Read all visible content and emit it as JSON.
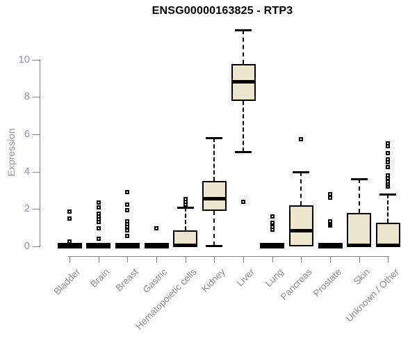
{
  "chart_data": {
    "type": "boxplot",
    "title": "ENSG00000163825 - RTP3",
    "ylabel": "Expression",
    "xlabel": "",
    "yticks": [
      0,
      2,
      4,
      6,
      8,
      10
    ],
    "ylim": [
      0,
      11.7
    ],
    "grid": false,
    "legend": "none",
    "colors": {
      "box_fill": "#ece6ce",
      "box_line": "#000000",
      "axis_line": "#808080",
      "axis_text": "#8d95a2",
      "category_text": "#8b8b8b"
    },
    "categories": [
      "Bladder",
      "Brain",
      "Breast",
      "Gastric",
      "Hematopoietic cells",
      "Kidney",
      "Liver",
      "Lung",
      "Pancreas",
      "Prostate",
      "Skin",
      "Unknown / Other"
    ],
    "series": [
      {
        "q1": 0,
        "median": 0.02,
        "q3": 0.08,
        "whisker_low": 0,
        "whisker_high": 0.08,
        "outliers": [
          1.85,
          1.5,
          0.25
        ]
      },
      {
        "q1": 0,
        "median": 0.02,
        "q3": 0.08,
        "whisker_low": 0,
        "whisker_high": 0.08,
        "outliers": [
          2.35,
          2.1,
          1.75,
          1.6,
          1.45,
          1.3,
          0.95,
          0.4
        ]
      },
      {
        "q1": 0,
        "median": 0.02,
        "q3": 0.08,
        "whisker_low": 0,
        "whisker_high": 0.08,
        "outliers": [
          2.9,
          2.25,
          1.95,
          1.35,
          1.2,
          1.05,
          0.85,
          0.55
        ]
      },
      {
        "q1": 0,
        "median": 0.02,
        "q3": 0.08,
        "whisker_low": 0,
        "whisker_high": 0.08,
        "outliers": [
          0.95
        ]
      },
      {
        "q1": 0,
        "median": 0.03,
        "q3": 0.85,
        "whisker_low": 0,
        "whisker_high": 2.1,
        "outliers": [
          2.55,
          2.4,
          2.25
        ]
      },
      {
        "q1": 1.9,
        "median": 2.55,
        "q3": 3.5,
        "whisker_low": 0.05,
        "whisker_high": 5.8,
        "outliers": []
      },
      {
        "q1": 7.8,
        "median": 8.8,
        "q3": 9.75,
        "whisker_low": 5.05,
        "whisker_high": 11.6,
        "outliers": [
          2.4
        ]
      },
      {
        "q1": 0,
        "median": 0.02,
        "q3": 0.08,
        "whisker_low": 0,
        "whisker_high": 0.08,
        "outliers": [
          1.6,
          1.25,
          1.05,
          0.9
        ]
      },
      {
        "q1": 0,
        "median": 0.85,
        "q3": 2.2,
        "whisker_low": 0,
        "whisker_high": 4.0,
        "outliers": [
          5.75
        ]
      },
      {
        "q1": 0,
        "median": 0.02,
        "q3": 0.08,
        "whisker_low": 0,
        "whisker_high": 0.08,
        "outliers": [
          2.8,
          2.6,
          1.35,
          1.2,
          1.1
        ]
      },
      {
        "q1": 0,
        "median": 0.03,
        "q3": 1.8,
        "whisker_low": 0,
        "whisker_high": 3.6,
        "outliers": []
      },
      {
        "q1": 0,
        "median": 0.03,
        "q3": 1.25,
        "whisker_low": 0,
        "whisker_high": 2.8,
        "outliers": [
          5.5,
          5.35,
          5.0,
          4.65,
          4.5,
          4.25,
          3.8,
          3.65,
          3.45,
          3.3,
          3.2
        ]
      }
    ]
  }
}
